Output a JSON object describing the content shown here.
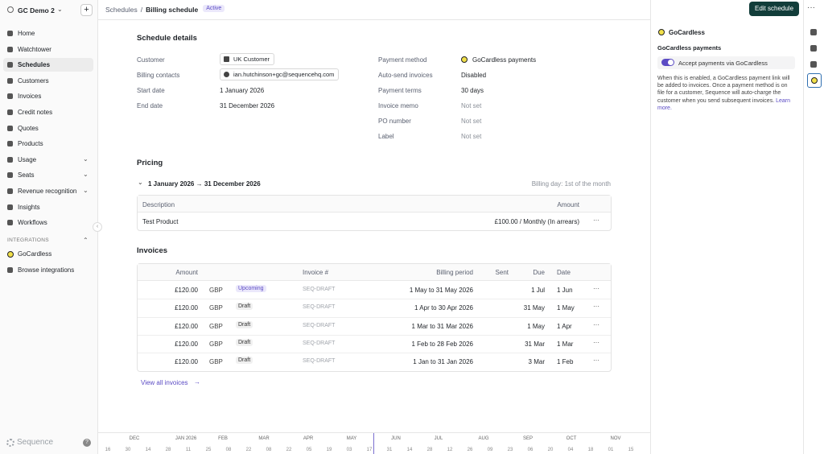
{
  "sidebar": {
    "workspace": "GC Demo 2",
    "nav": [
      {
        "label": "Home"
      },
      {
        "label": "Watchtower"
      },
      {
        "label": "Schedules",
        "active": true
      },
      {
        "label": "Customers"
      },
      {
        "label": "Invoices"
      },
      {
        "label": "Credit notes"
      },
      {
        "label": "Quotes"
      },
      {
        "label": "Products"
      },
      {
        "label": "Usage",
        "submenu": true
      },
      {
        "label": "Seats",
        "submenu": true
      },
      {
        "label": "Revenue recognition",
        "submenu": true
      },
      {
        "label": "Insights"
      },
      {
        "label": "Workflows"
      }
    ],
    "section": "INTEGRATIONS",
    "integrations": [
      {
        "label": "GoCardless"
      },
      {
        "label": "Browse integrations"
      }
    ],
    "brand": "Sequence"
  },
  "header": {
    "breadcrumb": [
      "Schedules",
      "/",
      "Billing schedule"
    ],
    "status": "Active",
    "action": "Edit schedule"
  },
  "details": {
    "title": "Schedule details",
    "left": [
      {
        "label": "Customer",
        "value": "UK Customer",
        "chip": "building"
      },
      {
        "label": "Billing contacts",
        "value": "ian.hutchinson+gc@sequencehq.com",
        "chip": "person"
      },
      {
        "label": "Start date",
        "value": "1 January 2026"
      },
      {
        "label": "End date",
        "value": "31 December 2026"
      }
    ],
    "right": [
      {
        "label": "Payment method",
        "value": "GoCardless payments",
        "chip": "gc"
      },
      {
        "label": "Auto-send invoices",
        "value": "Disabled"
      },
      {
        "label": "Payment terms",
        "value": "30 days"
      },
      {
        "label": "Invoice memo",
        "value": "Not set",
        "muted": true
      },
      {
        "label": "PO number",
        "value": "Not set",
        "muted": true
      },
      {
        "label": "Label",
        "value": "Not set",
        "muted": true
      }
    ]
  },
  "pricing": {
    "title": "Pricing",
    "period": "1 January 2026 → 31 December 2026",
    "billing_day": "Billing day: 1st of the month",
    "columns": [
      "Description",
      "Amount"
    ],
    "rows": [
      {
        "description": "Test Product",
        "amount": "£100.00 / Monthly (In arrears)"
      }
    ]
  },
  "invoices": {
    "title": "Invoices",
    "columns": [
      "Amount",
      "Invoice #",
      "Billing period",
      "Sent",
      "Due",
      "Date"
    ],
    "rows": [
      {
        "amount": "£120.00",
        "currency": "GBP",
        "status": "Upcoming",
        "number": "SEQ-DRAFT",
        "period": "1 May to 31 May 2026",
        "due": "1 Jul",
        "date": "1 Jun"
      },
      {
        "amount": "£120.00",
        "currency": "GBP",
        "status": "Draft",
        "number": "SEQ-DRAFT",
        "period": "1 Apr to 30 Apr 2026",
        "due": "31 May",
        "date": "1 May"
      },
      {
        "amount": "£120.00",
        "currency": "GBP",
        "status": "Draft",
        "number": "SEQ-DRAFT",
        "period": "1 Mar to 31 Mar 2026",
        "due": "1 May",
        "date": "1 Apr"
      },
      {
        "amount": "£120.00",
        "currency": "GBP",
        "status": "Draft",
        "number": "SEQ-DRAFT",
        "period": "1 Feb to 28 Feb 2026",
        "due": "31 Mar",
        "date": "1 Mar"
      },
      {
        "amount": "£120.00",
        "currency": "GBP",
        "status": "Draft",
        "number": "SEQ-DRAFT",
        "period": "1 Jan to 31 Jan 2026",
        "due": "3 Mar",
        "date": "1 Feb"
      }
    ],
    "link": "View all invoices"
  },
  "panel": {
    "title": "GoCardless",
    "subtitle": "GoCardless payments",
    "toggle": "Accept payments via GoCardless",
    "description": "When this is enabled, a GoCardless payment link will be added to invoices. Once a payment method is on file for a customer, Sequence will auto-charge the customer when you send subsequent invoices.",
    "link": "Learn more."
  },
  "timeline": {
    "months": [
      "DEC",
      "JAN 2026",
      "FEB",
      "MAR",
      "APR",
      "MAY",
      "JUN",
      "JUL",
      "AUG",
      "SEP",
      "OCT",
      "NOV"
    ],
    "days": [
      "16",
      "30",
      "14",
      "28",
      "11",
      "25",
      "08",
      "22",
      "08",
      "22",
      "05",
      "19",
      "03",
      "17",
      "31",
      "14",
      "28",
      "12",
      "26",
      "09",
      "23",
      "06",
      "20",
      "04",
      "18",
      "01",
      "15"
    ]
  }
}
